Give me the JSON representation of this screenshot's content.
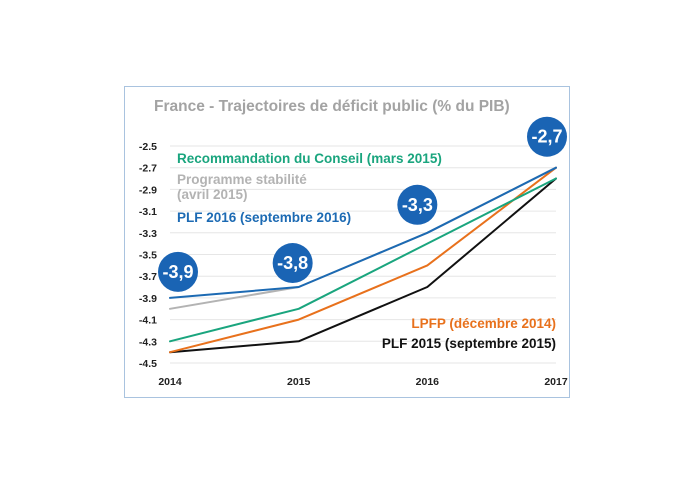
{
  "chart_data": {
    "type": "line",
    "title": "France - Trajectoires de déficit public (% du PIB)",
    "xlabel": "",
    "ylabel": "",
    "x": [
      2014,
      2015,
      2016,
      2017
    ],
    "x_tick_labels": [
      "2014",
      "2015",
      "2016",
      "2017"
    ],
    "ylim": [
      -4.5,
      -2.5
    ],
    "y_ticks": [
      -2.5,
      -2.7,
      -2.9,
      -3.1,
      -3.3,
      -3.5,
      -3.7,
      -3.9,
      -4.1,
      -4.3,
      -4.5
    ],
    "y_tick_labels": [
      "-2.5",
      "-2.7",
      "-2.9",
      "-3.1",
      "-3.3",
      "-3.5",
      "-3.7",
      "-3.9",
      "-4.1",
      "-4.3",
      "-4.5"
    ],
    "grid": true,
    "series": [
      {
        "id": "programme",
        "name_lines": [
          "Programme stabilité",
          "(avril 2015)"
        ],
        "color": "#b3b3b3",
        "values": [
          -4.0,
          -3.8,
          -3.3,
          -2.7
        ]
      },
      {
        "id": "plf2015",
        "name_lines": [
          "PLF 2015 (septembre 2015)"
        ],
        "color": "#111111",
        "values": [
          -4.4,
          -4.3,
          -3.8,
          -2.8
        ]
      },
      {
        "id": "lpfp",
        "name_lines": [
          "LPFP (décembre 2014)"
        ],
        "color": "#e8711c",
        "values": [
          -4.4,
          -4.1,
          -3.6,
          -2.7
        ]
      },
      {
        "id": "conseil",
        "name_lines": [
          "Recommandation du Conseil (mars  2015)"
        ],
        "color": "#1aa57e",
        "values": [
          -4.3,
          -4.0,
          -3.4,
          -2.8
        ]
      },
      {
        "id": "plf2016",
        "name_lines": [
          "PLF 2016 (septembre 2016)"
        ],
        "color": "#1c6ab3",
        "values": [
          -3.9,
          -3.8,
          -3.3,
          -2.7
        ]
      }
    ],
    "annotations": [
      {
        "label": "-3,9",
        "x": 2014,
        "y": -3.9
      },
      {
        "label": "-3,8",
        "x": 2015,
        "y": -3.8
      },
      {
        "label": "-3,3",
        "x": 2016,
        "y": -3.3
      },
      {
        "label": "-2,7",
        "x": 2017,
        "y": -2.7
      }
    ],
    "annotation_color": "#1a64b4"
  }
}
